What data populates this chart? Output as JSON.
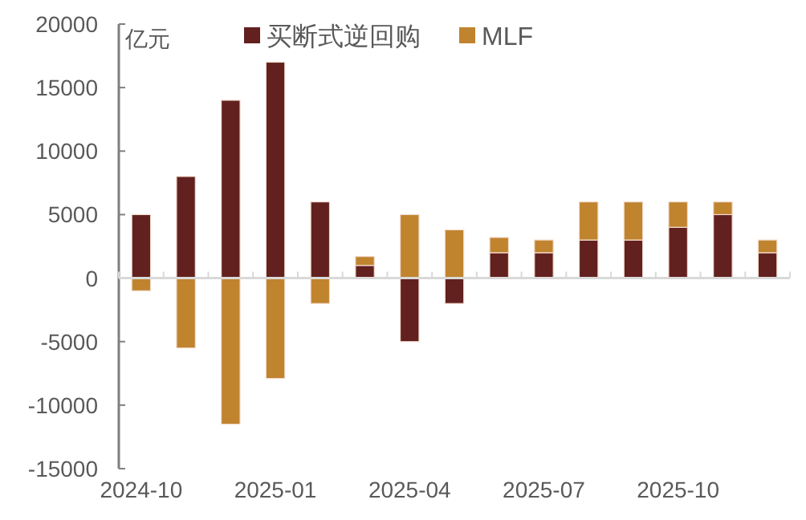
{
  "chart_data": {
    "type": "bar",
    "stacked": true,
    "ylabel": "亿元",
    "legend": "top",
    "categories": [
      "2024-10",
      null,
      null,
      "2025-01",
      null,
      null,
      "2025-04",
      null,
      null,
      "2025-07",
      null,
      null,
      "2025-10",
      null,
      null
    ],
    "series": [
      {
        "name": "买断式逆回购",
        "color": "#62201f",
        "values": [
          5000,
          8000,
          14000,
          17000,
          6000,
          1000,
          -5000,
          -2000,
          2000,
          2000,
          3000,
          3000,
          4000,
          5000,
          2000
        ]
      },
      {
        "name": "MLF",
        "color": "#c0832e",
        "values": [
          -1000,
          -5500,
          -11500,
          -7900,
          -2000,
          700,
          5000,
          3800,
          1200,
          1000,
          3000,
          3000,
          2000,
          1000,
          1000
        ]
      }
    ],
    "ylim": [
      -15000,
      20000
    ],
    "yticks": [
      -15000,
      -10000,
      -5000,
      0,
      5000,
      10000,
      15000,
      20000
    ]
  }
}
